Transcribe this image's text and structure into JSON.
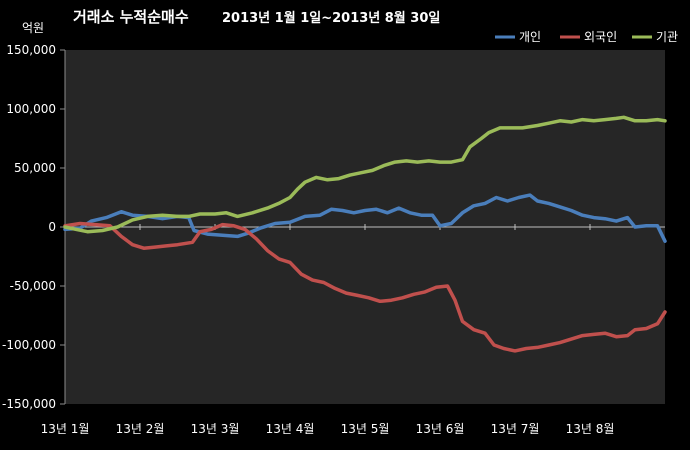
{
  "chart_data": {
    "type": "line",
    "title_main": "거래소 누적순매수",
    "title_period": "2013년 1월 1일~2013년 8월 30일",
    "unit_label": "억원",
    "ylim": [
      -150000,
      150000
    ],
    "y_ticks": [
      {
        "value": 150000,
        "label": "150,000"
      },
      {
        "value": 100000,
        "label": "100,000"
      },
      {
        "value": 50000,
        "label": "50,000"
      },
      {
        "value": 0,
        "label": "0"
      },
      {
        "value": -50000,
        "label": "-50,000"
      },
      {
        "value": -100000,
        "label": "-100,000"
      },
      {
        "value": -150000,
        "label": "-150,000"
      }
    ],
    "x_ticks": [
      {
        "t": 0,
        "label": "13년 1월"
      },
      {
        "t": 1,
        "label": "13년 2월"
      },
      {
        "t": 2,
        "label": "13년 3월"
      },
      {
        "t": 3,
        "label": "13년 4월"
      },
      {
        "t": 4,
        "label": "13년 5월"
      },
      {
        "t": 5,
        "label": "13년 6월"
      },
      {
        "t": 6,
        "label": "13년 7월"
      },
      {
        "t": 7,
        "label": "13년 8월"
      }
    ],
    "x_range": [
      0,
      8
    ],
    "legend_position": "top-right",
    "grid": false,
    "series": [
      {
        "name": "개인",
        "color": "#4a7ebb",
        "points": [
          [
            0,
            -2000
          ],
          [
            0.2,
            -1000
          ],
          [
            0.35,
            5000
          ],
          [
            0.55,
            8000
          ],
          [
            0.75,
            13000
          ],
          [
            0.9,
            10000
          ],
          [
            1.1,
            9000
          ],
          [
            1.3,
            7000
          ],
          [
            1.5,
            9000
          ],
          [
            1.65,
            8000
          ],
          [
            1.72,
            -3000
          ],
          [
            1.9,
            -6000
          ],
          [
            2.1,
            -7000
          ],
          [
            2.3,
            -8000
          ],
          [
            2.45,
            -5000
          ],
          [
            2.6,
            -1000
          ],
          [
            2.8,
            3000
          ],
          [
            3.0,
            4000
          ],
          [
            3.2,
            9000
          ],
          [
            3.4,
            10000
          ],
          [
            3.55,
            15000
          ],
          [
            3.7,
            14000
          ],
          [
            3.85,
            12000
          ],
          [
            4.0,
            14000
          ],
          [
            4.15,
            15000
          ],
          [
            4.3,
            12000
          ],
          [
            4.45,
            16000
          ],
          [
            4.6,
            12000
          ],
          [
            4.75,
            10000
          ],
          [
            4.9,
            10000
          ],
          [
            5.0,
            1000
          ],
          [
            5.15,
            3000
          ],
          [
            5.3,
            12000
          ],
          [
            5.45,
            18000
          ],
          [
            5.6,
            20000
          ],
          [
            5.75,
            25000
          ],
          [
            5.9,
            22000
          ],
          [
            6.05,
            25000
          ],
          [
            6.2,
            27000
          ],
          [
            6.3,
            22000
          ],
          [
            6.45,
            20000
          ],
          [
            6.6,
            17000
          ],
          [
            6.75,
            14000
          ],
          [
            6.9,
            10000
          ],
          [
            7.05,
            8000
          ],
          [
            7.2,
            7000
          ],
          [
            7.35,
            5000
          ],
          [
            7.5,
            8000
          ],
          [
            7.6,
            0
          ],
          [
            7.75,
            1000
          ],
          [
            7.9,
            1000
          ],
          [
            8.0,
            -12000
          ]
        ]
      },
      {
        "name": "외국인",
        "color": "#c0504d",
        "points": [
          [
            0,
            1000
          ],
          [
            0.2,
            3000
          ],
          [
            0.4,
            2000
          ],
          [
            0.6,
            1000
          ],
          [
            0.75,
            -8000
          ],
          [
            0.9,
            -15000
          ],
          [
            1.05,
            -18000
          ],
          [
            1.2,
            -17000
          ],
          [
            1.35,
            -16000
          ],
          [
            1.5,
            -15000
          ],
          [
            1.7,
            -13000
          ],
          [
            1.8,
            -4000
          ],
          [
            1.95,
            -2000
          ],
          [
            2.1,
            2000
          ],
          [
            2.25,
            1000
          ],
          [
            2.4,
            -2000
          ],
          [
            2.55,
            -10000
          ],
          [
            2.7,
            -20000
          ],
          [
            2.85,
            -27000
          ],
          [
            3.0,
            -30000
          ],
          [
            3.15,
            -40000
          ],
          [
            3.3,
            -45000
          ],
          [
            3.45,
            -47000
          ],
          [
            3.6,
            -52000
          ],
          [
            3.75,
            -56000
          ],
          [
            3.9,
            -58000
          ],
          [
            4.05,
            -60000
          ],
          [
            4.2,
            -63000
          ],
          [
            4.35,
            -62000
          ],
          [
            4.5,
            -60000
          ],
          [
            4.65,
            -57000
          ],
          [
            4.8,
            -55000
          ],
          [
            4.95,
            -51000
          ],
          [
            5.1,
            -50000
          ],
          [
            5.2,
            -62000
          ],
          [
            5.3,
            -80000
          ],
          [
            5.45,
            -87000
          ],
          [
            5.6,
            -90000
          ],
          [
            5.72,
            -100000
          ],
          [
            5.85,
            -103000
          ],
          [
            6.0,
            -105000
          ],
          [
            6.15,
            -103000
          ],
          [
            6.3,
            -102000
          ],
          [
            6.45,
            -100000
          ],
          [
            6.6,
            -98000
          ],
          [
            6.75,
            -95000
          ],
          [
            6.9,
            -92000
          ],
          [
            7.05,
            -91000
          ],
          [
            7.2,
            -90000
          ],
          [
            7.35,
            -93000
          ],
          [
            7.5,
            -92000
          ],
          [
            7.6,
            -87000
          ],
          [
            7.75,
            -86000
          ],
          [
            7.9,
            -82000
          ],
          [
            8.0,
            -72000
          ]
        ]
      },
      {
        "name": "기관",
        "color": "#9bbb59",
        "points": [
          [
            0,
            0
          ],
          [
            0.15,
            -2000
          ],
          [
            0.3,
            -4000
          ],
          [
            0.5,
            -3000
          ],
          [
            0.7,
            0
          ],
          [
            0.9,
            6000
          ],
          [
            1.1,
            9000
          ],
          [
            1.3,
            10000
          ],
          [
            1.5,
            9000
          ],
          [
            1.65,
            9000
          ],
          [
            1.8,
            11000
          ],
          [
            2.0,
            11000
          ],
          [
            2.15,
            12000
          ],
          [
            2.3,
            9000
          ],
          [
            2.5,
            12000
          ],
          [
            2.7,
            16000
          ],
          [
            2.85,
            20000
          ],
          [
            3.0,
            25000
          ],
          [
            3.1,
            32000
          ],
          [
            3.2,
            38000
          ],
          [
            3.35,
            42000
          ],
          [
            3.5,
            40000
          ],
          [
            3.65,
            41000
          ],
          [
            3.8,
            44000
          ],
          [
            3.95,
            46000
          ],
          [
            4.1,
            48000
          ],
          [
            4.25,
            52000
          ],
          [
            4.4,
            55000
          ],
          [
            4.55,
            56000
          ],
          [
            4.7,
            55000
          ],
          [
            4.85,
            56000
          ],
          [
            5.0,
            55000
          ],
          [
            5.15,
            55000
          ],
          [
            5.3,
            57000
          ],
          [
            5.4,
            68000
          ],
          [
            5.55,
            75000
          ],
          [
            5.65,
            80000
          ],
          [
            5.8,
            84000
          ],
          [
            5.95,
            84000
          ],
          [
            6.1,
            84000
          ],
          [
            6.3,
            86000
          ],
          [
            6.45,
            88000
          ],
          [
            6.6,
            90000
          ],
          [
            6.75,
            89000
          ],
          [
            6.9,
            91000
          ],
          [
            7.05,
            90000
          ],
          [
            7.2,
            91000
          ],
          [
            7.35,
            92000
          ],
          [
            7.45,
            93000
          ],
          [
            7.6,
            90000
          ],
          [
            7.75,
            90000
          ],
          [
            7.9,
            91000
          ],
          [
            8.0,
            90000
          ]
        ]
      }
    ]
  }
}
